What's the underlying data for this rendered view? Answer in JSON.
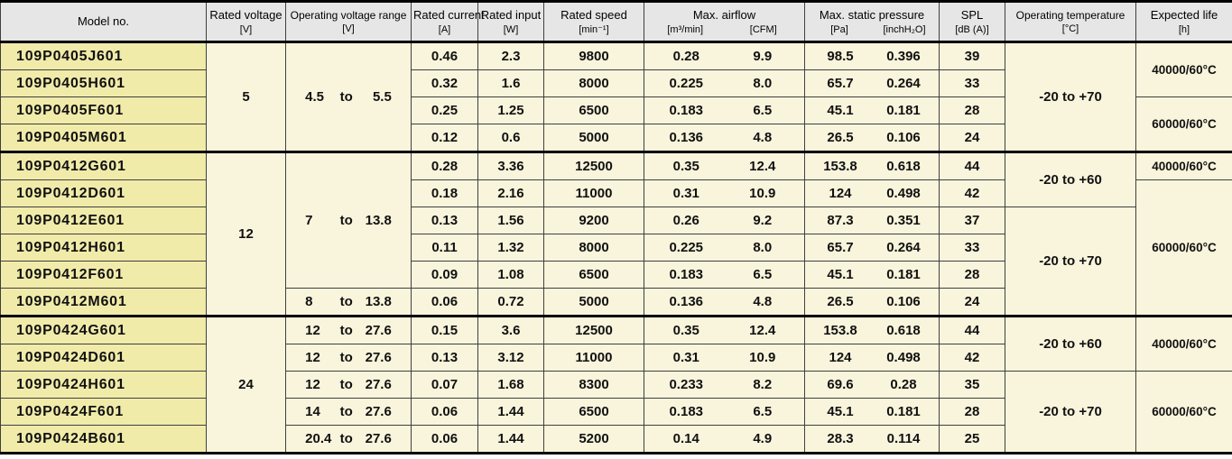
{
  "colors": {
    "header_bg": "#e6e6e6",
    "model_column_bg": "#f1ebaa",
    "data_cell_bg": "#f9f5dc",
    "grid_border": "#3f3f3f",
    "heavy_border": "#000000"
  },
  "table": {
    "range_separator": "to",
    "header": {
      "columns": [
        {
          "label": "Model no.",
          "unit": ""
        },
        {
          "label": "Rated voltage",
          "unit": "[V]"
        },
        {
          "label": "Operating voltage range",
          "unit": "[V]"
        },
        {
          "label": "Rated current",
          "unit": "[A]"
        },
        {
          "label": "Rated input",
          "unit": "[W]"
        },
        {
          "label": "Rated speed",
          "unit": "[min⁻¹]"
        },
        {
          "label": "Max. airflow",
          "unit_left": "[m³/min]",
          "unit_right": "[CFM]"
        },
        {
          "label": "Max. static pressure",
          "unit_left": "[Pa]",
          "unit_right": "[inchH₂O]"
        },
        {
          "label": "SPL",
          "unit": "[dB (A)]"
        },
        {
          "label": "Operating temperature",
          "unit": "[°C]"
        },
        {
          "label": "Expected life",
          "unit": "[h]"
        }
      ]
    },
    "groups": [
      {
        "rated_voltage": "5",
        "voltage_ranges": [
          {
            "min": "4.5",
            "max": "5.5",
            "span": 4
          }
        ],
        "temperatures": [
          {
            "value": "-20 to +70",
            "span": 4
          }
        ],
        "expected_lives": [
          {
            "value": "40000/60°C",
            "span": 2
          },
          {
            "value": "60000/60°C",
            "span": 2
          }
        ],
        "rows": [
          {
            "model": "109P0405J601",
            "current": "0.46",
            "input": "2.3",
            "speed": "9800",
            "airflow_m3min": "0.28",
            "airflow_cfm": "9.9",
            "pressure_pa": "98.5",
            "pressure_inch": "0.396",
            "spl": "39"
          },
          {
            "model": "109P0405H601",
            "current": "0.32",
            "input": "1.6",
            "speed": "8000",
            "airflow_m3min": "0.225",
            "airflow_cfm": "8.0",
            "pressure_pa": "65.7",
            "pressure_inch": "0.264",
            "spl": "33"
          },
          {
            "model": "109P0405F601",
            "current": "0.25",
            "input": "1.25",
            "speed": "6500",
            "airflow_m3min": "0.183",
            "airflow_cfm": "6.5",
            "pressure_pa": "45.1",
            "pressure_inch": "0.181",
            "spl": "28"
          },
          {
            "model": "109P0405M601",
            "current": "0.12",
            "input": "0.6",
            "speed": "5000",
            "airflow_m3min": "0.136",
            "airflow_cfm": "4.8",
            "pressure_pa": "26.5",
            "pressure_inch": "0.106",
            "spl": "24"
          }
        ]
      },
      {
        "rated_voltage": "12",
        "voltage_ranges": [
          {
            "min": "7",
            "max": "13.8",
            "span": 5
          },
          {
            "min": "8",
            "max": "13.8",
            "span": 1
          }
        ],
        "temperatures": [
          {
            "value": "-20 to +60",
            "span": 2
          },
          {
            "value": "-20 to +70",
            "span": 4
          }
        ],
        "expected_lives": [
          {
            "value": "40000/60°C",
            "span": 1
          },
          {
            "value": "60000/60°C",
            "span": 5
          }
        ],
        "rows": [
          {
            "model": "109P0412G601",
            "current": "0.28",
            "input": "3.36",
            "speed": "12500",
            "airflow_m3min": "0.35",
            "airflow_cfm": "12.4",
            "pressure_pa": "153.8",
            "pressure_inch": "0.618",
            "spl": "44"
          },
          {
            "model": "109P0412D601",
            "current": "0.18",
            "input": "2.16",
            "speed": "11000",
            "airflow_m3min": "0.31",
            "airflow_cfm": "10.9",
            "pressure_pa": "124",
            "pressure_inch": "0.498",
            "spl": "42"
          },
          {
            "model": "109P0412E601",
            "current": "0.13",
            "input": "1.56",
            "speed": "9200",
            "airflow_m3min": "0.26",
            "airflow_cfm": "9.2",
            "pressure_pa": "87.3",
            "pressure_inch": "0.351",
            "spl": "37"
          },
          {
            "model": "109P0412H601",
            "current": "0.11",
            "input": "1.32",
            "speed": "8000",
            "airflow_m3min": "0.225",
            "airflow_cfm": "8.0",
            "pressure_pa": "65.7",
            "pressure_inch": "0.264",
            "spl": "33"
          },
          {
            "model": "109P0412F601",
            "current": "0.09",
            "input": "1.08",
            "speed": "6500",
            "airflow_m3min": "0.183",
            "airflow_cfm": "6.5",
            "pressure_pa": "45.1",
            "pressure_inch": "0.181",
            "spl": "28"
          },
          {
            "model": "109P0412M601",
            "current": "0.06",
            "input": "0.72",
            "speed": "5000",
            "airflow_m3min": "0.136",
            "airflow_cfm": "4.8",
            "pressure_pa": "26.5",
            "pressure_inch": "0.106",
            "spl": "24"
          }
        ]
      },
      {
        "rated_voltage": "24",
        "voltage_ranges": [
          {
            "min": "12",
            "max": "27.6",
            "span": 1
          },
          {
            "min": "12",
            "max": "27.6",
            "span": 1
          },
          {
            "min": "12",
            "max": "27.6",
            "span": 1
          },
          {
            "min": "14",
            "max": "27.6",
            "span": 1
          },
          {
            "min": "20.4",
            "max": "27.6",
            "span": 1
          }
        ],
        "temperatures": [
          {
            "value": "-20 to +60",
            "span": 2
          },
          {
            "value": "-20 to +70",
            "span": 3
          }
        ],
        "expected_lives": [
          {
            "value": "40000/60°C",
            "span": 2
          },
          {
            "value": "60000/60°C",
            "span": 3
          }
        ],
        "rows": [
          {
            "model": "109P0424G601",
            "current": "0.15",
            "input": "3.6",
            "speed": "12500",
            "airflow_m3min": "0.35",
            "airflow_cfm": "12.4",
            "pressure_pa": "153.8",
            "pressure_inch": "0.618",
            "spl": "44"
          },
          {
            "model": "109P0424D601",
            "current": "0.13",
            "input": "3.12",
            "speed": "11000",
            "airflow_m3min": "0.31",
            "airflow_cfm": "10.9",
            "pressure_pa": "124",
            "pressure_inch": "0.498",
            "spl": "42"
          },
          {
            "model": "109P0424H601",
            "current": "0.07",
            "input": "1.68",
            "speed": "8300",
            "airflow_m3min": "0.233",
            "airflow_cfm": "8.2",
            "pressure_pa": "69.6",
            "pressure_inch": "0.28",
            "spl": "35"
          },
          {
            "model": "109P0424F601",
            "current": "0.06",
            "input": "1.44",
            "speed": "6500",
            "airflow_m3min": "0.183",
            "airflow_cfm": "6.5",
            "pressure_pa": "45.1",
            "pressure_inch": "0.181",
            "spl": "28"
          },
          {
            "model": "109P0424B601",
            "current": "0.06",
            "input": "1.44",
            "speed": "5200",
            "airflow_m3min": "0.14",
            "airflow_cfm": "4.9",
            "pressure_pa": "28.3",
            "pressure_inch": "0.114",
            "spl": "25"
          }
        ]
      }
    ]
  }
}
